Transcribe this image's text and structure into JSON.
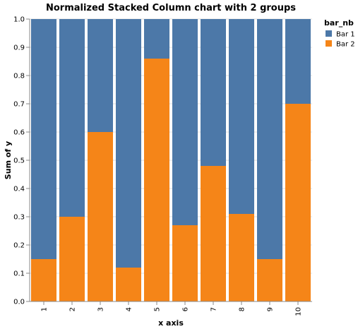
{
  "chart_data": {
    "type": "bar",
    "stacked": true,
    "normalized": true,
    "title": "Normalized Stacked Column chart with 2 groups",
    "xlabel": "x axis",
    "ylabel": "Sum of y",
    "categories": [
      "1",
      "2",
      "3",
      "4",
      "5",
      "6",
      "7",
      "8",
      "9",
      "10"
    ],
    "ylim": [
      0,
      1
    ],
    "yticks": [
      "0.0",
      "0.1",
      "0.2",
      "0.3",
      "0.4",
      "0.5",
      "0.6",
      "0.7",
      "0.8",
      "0.9",
      "1.0"
    ],
    "grid": true,
    "legend": {
      "title": "bar_nb",
      "placement": "top-right"
    },
    "series": [
      {
        "name": "Bar 1",
        "color": "#4c78a8",
        "values": [
          0.85,
          0.7,
          0.4,
          0.88,
          0.14,
          0.73,
          0.52,
          0.69,
          0.85,
          0.3
        ]
      },
      {
        "name": "Bar 2",
        "color": "#f58518",
        "values": [
          0.15,
          0.3,
          0.6,
          0.12,
          0.86,
          0.27,
          0.48,
          0.31,
          0.15,
          0.7
        ]
      }
    ]
  }
}
